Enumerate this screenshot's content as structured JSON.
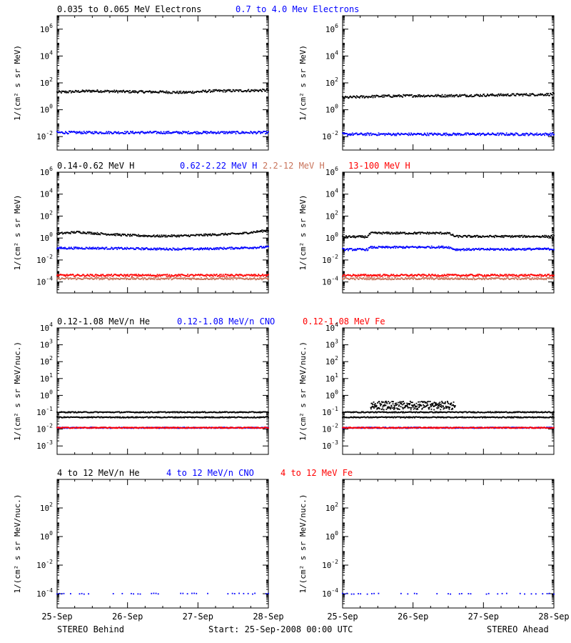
{
  "colors": {
    "black": "#000000",
    "blue": "#0000ff",
    "brown": "#c8735a",
    "red": "#ff0000"
  },
  "footer": {
    "left": "STEREO Behind",
    "center": "Start: 25-Sep-2008 00:00 UTC",
    "right": "STEREO Ahead"
  },
  "x_ticks": [
    "25-Sep",
    "26-Sep",
    "27-Sep",
    "28-Sep"
  ],
  "chart_data": [
    {
      "type": "scatter",
      "row": 1,
      "spacecraft": "STEREO Behind",
      "title_labels": [
        {
          "text": "0.035 to 0.065 MeV Electrons",
          "color": "#000000"
        },
        {
          "text": "0.7 to 4.0 Mev Electrons",
          "color": "#0000ff"
        }
      ],
      "ylabel": "1/(cm² s sr MeV)",
      "yscale": "log",
      "ylim_exp": [
        -3,
        7
      ],
      "ytick_exps": [
        -2,
        0,
        2,
        4,
        6
      ],
      "xlim_days": [
        0,
        3
      ],
      "series": [
        {
          "name": "0.035 to 0.065 MeV Electrons",
          "color": "#000000",
          "x": [
            0,
            0.5,
            1,
            1.5,
            1.8,
            2.2,
            2.6,
            3
          ],
          "y": [
            20,
            25,
            22,
            21,
            19,
            25,
            26,
            28
          ]
        },
        {
          "name": "0.7 to 4.0 Mev Electrons",
          "color": "#0000ff",
          "x": [
            0,
            0.5,
            1,
            1.5,
            2,
            2.5,
            3
          ],
          "y": [
            0.02,
            0.02,
            0.02,
            0.02,
            0.02,
            0.02,
            0.02
          ]
        }
      ]
    },
    {
      "type": "scatter",
      "row": 1,
      "spacecraft": "STEREO Ahead",
      "ylabel": "1/(cm² s sr MeV)",
      "yscale": "log",
      "ylim_exp": [
        -3,
        7
      ],
      "ytick_exps": [
        -2,
        0,
        2,
        4,
        6
      ],
      "xlim_days": [
        0,
        3
      ],
      "series": [
        {
          "name": "0.035 to 0.065 MeV Electrons",
          "color": "#000000",
          "x": [
            0,
            0.5,
            1,
            1.5,
            2,
            2.5,
            3
          ],
          "y": [
            8,
            10,
            11,
            11,
            12,
            13,
            14
          ]
        },
        {
          "name": "0.7 to 4.0 Mev Electrons",
          "color": "#0000ff",
          "x": [
            0,
            0.5,
            1,
            1.5,
            2,
            2.5,
            3
          ],
          "y": [
            0.015,
            0.015,
            0.015,
            0.015,
            0.015,
            0.015,
            0.015
          ]
        }
      ]
    },
    {
      "type": "scatter",
      "row": 2,
      "spacecraft": "STEREO Behind",
      "title_labels": [
        {
          "text": "0.14-0.62 MeV H",
          "color": "#000000"
        },
        {
          "text": "0.62-2.22 MeV H",
          "color": "#0000ff"
        },
        {
          "text": "2.2-12 MeV H",
          "color": "#c8735a"
        },
        {
          "text": "13-100 MeV H",
          "color": "#ff0000"
        }
      ],
      "ylabel": "1/(cm² s sr MeV)",
      "yscale": "log",
      "ylim_exp": [
        -5,
        6
      ],
      "ytick_exps": [
        -4,
        -2,
        0,
        2,
        4,
        6
      ],
      "xlim_days": [
        0,
        3
      ],
      "series": [
        {
          "name": "0.14-0.62 MeV H",
          "color": "#000000",
          "x": [
            0,
            0.3,
            0.6,
            1,
            1.4,
            1.8,
            2.2,
            2.6,
            3
          ],
          "y": [
            2.5,
            3.5,
            2.5,
            1.8,
            1.5,
            1.6,
            2.0,
            2.5,
            5
          ]
        },
        {
          "name": "0.62-2.22 MeV H",
          "color": "#0000ff",
          "x": [
            0,
            0.5,
            1,
            1.5,
            2,
            2.5,
            3
          ],
          "y": [
            0.12,
            0.12,
            0.11,
            0.1,
            0.1,
            0.12,
            0.15
          ]
        },
        {
          "name": "2.2-12 MeV H",
          "color": "#c8735a",
          "x": [
            0,
            1,
            2,
            3
          ],
          "y": [
            0.0002,
            0.0002,
            0.0002,
            0.0002
          ]
        },
        {
          "name": "13-100 MeV H",
          "color": "#ff0000",
          "x": [
            0,
            1,
            2,
            3
          ],
          "y": [
            0.0004,
            0.0004,
            0.0004,
            0.0004
          ]
        }
      ]
    },
    {
      "type": "scatter",
      "row": 2,
      "spacecraft": "STEREO Ahead",
      "ylabel": "1/(cm² s sr MeV)",
      "yscale": "log",
      "ylim_exp": [
        -5,
        6
      ],
      "ytick_exps": [
        -4,
        -2,
        0,
        2,
        4,
        6
      ],
      "xlim_days": [
        0,
        3
      ],
      "series": [
        {
          "name": "0.14-0.62 MeV H",
          "color": "#000000",
          "x": [
            0,
            0.35,
            0.4,
            1.5,
            1.6,
            3
          ],
          "y": [
            1.3,
            1.3,
            2.8,
            2.8,
            1.4,
            1.4
          ]
        },
        {
          "name": "0.62-2.22 MeV H",
          "color": "#0000ff",
          "x": [
            0,
            0.35,
            0.4,
            1.5,
            1.6,
            3
          ],
          "y": [
            0.09,
            0.09,
            0.14,
            0.15,
            0.09,
            0.1
          ]
        },
        {
          "name": "2.2-12 MeV H",
          "color": "#c8735a",
          "x": [
            0,
            1,
            2,
            3
          ],
          "y": [
            0.0002,
            0.0002,
            0.0002,
            0.0002
          ]
        },
        {
          "name": "13-100 MeV H",
          "color": "#ff0000",
          "x": [
            0,
            1,
            2,
            3
          ],
          "y": [
            0.0004,
            0.0004,
            0.0004,
            0.0004
          ]
        }
      ]
    },
    {
      "type": "scatter",
      "row": 3,
      "spacecraft": "STEREO Behind",
      "title_labels": [
        {
          "text": "0.12-1.08 MeV/n He",
          "color": "#000000"
        },
        {
          "text": "0.12-1.08 MeV/n CNO",
          "color": "#0000ff"
        },
        {
          "text": "0.12-1.08 MeV Fe",
          "color": "#ff0000"
        }
      ],
      "ylabel": "1/(cm² s sr MeV/nuc.)",
      "yscale": "log",
      "ylim_exp": [
        -3.5,
        4
      ],
      "ytick_exps": [
        -3,
        -2,
        -1,
        0,
        1,
        2,
        3,
        4
      ],
      "xlim_days": [
        0,
        3
      ],
      "series": [
        {
          "name": "0.12-1.08 MeV/n He",
          "color": "#000000",
          "x": [
            0,
            3
          ],
          "y": [
            0.05,
            0.05
          ]
        },
        {
          "name": "0.12-1.08 MeV/n He (upper)",
          "color": "#000000",
          "x": [
            0,
            3
          ],
          "y": [
            0.1,
            0.1
          ]
        },
        {
          "name": "0.12-1.08 MeV/n CNO",
          "color": "#0000ff",
          "x": [
            0,
            3
          ],
          "y": [
            0.012,
            0.012
          ]
        },
        {
          "name": "0.12-1.08 MeV Fe",
          "color": "#ff0000",
          "x": [
            0,
            3
          ],
          "y": [
            0.012,
            0.012
          ]
        }
      ]
    },
    {
      "type": "scatter",
      "row": 3,
      "spacecraft": "STEREO Ahead",
      "ylabel": "1/(cm² s sr MeV/nuc.)",
      "yscale": "log",
      "ylim_exp": [
        -3.5,
        4
      ],
      "ytick_exps": [
        -3,
        -2,
        -1,
        0,
        1,
        2,
        3,
        4
      ],
      "xlim_days": [
        0,
        3
      ],
      "series": [
        {
          "name": "0.12-1.08 MeV/n He",
          "color": "#000000",
          "x": [
            0,
            3
          ],
          "y": [
            0.05,
            0.05
          ]
        },
        {
          "name": "0.12-1.08 MeV/n He (upper)",
          "color": "#000000",
          "x": [
            0,
            3
          ],
          "y": [
            0.1,
            0.1
          ]
        },
        {
          "name": "0.12-1.08 MeV/n He (enhanced)",
          "color": "#000000",
          "x": [
            0.4,
            1.6
          ],
          "y": [
            0.25,
            0.25
          ]
        },
        {
          "name": "0.12-1.08 MeV/n CNO",
          "color": "#0000ff",
          "x": [
            0,
            3
          ],
          "y": [
            0.012,
            0.012
          ]
        },
        {
          "name": "0.12-1.08 MeV Fe",
          "color": "#ff0000",
          "x": [
            0,
            3
          ],
          "y": [
            0.012,
            0.012
          ]
        }
      ]
    },
    {
      "type": "scatter",
      "row": 4,
      "spacecraft": "STEREO Behind",
      "title_labels": [
        {
          "text": "4 to 12 MeV/n He",
          "color": "#000000"
        },
        {
          "text": "4 to 12 MeV/n CNO",
          "color": "#0000ff"
        },
        {
          "text": "4 to 12 MeV Fe",
          "color": "#ff0000"
        }
      ],
      "ylabel": "1/(cm² s sr MeV/nuc.)",
      "yscale": "log",
      "ylim_exp": [
        -5,
        4
      ],
      "ytick_exps": [
        -4,
        -2,
        0,
        2
      ],
      "xlim_days": [
        0,
        3
      ],
      "series": [
        {
          "name": "4 to 12 MeV/n He",
          "color": "#0000ff",
          "x": [
            0,
            3
          ],
          "y": [
            0.0001,
            0.0001
          ]
        }
      ]
    },
    {
      "type": "scatter",
      "row": 4,
      "spacecraft": "STEREO Ahead",
      "ylabel": "1/(cm² s sr MeV/nuc.)",
      "yscale": "log",
      "ylim_exp": [
        -5,
        4
      ],
      "ytick_exps": [
        -4,
        -2,
        0,
        2
      ],
      "xlim_days": [
        0,
        3
      ],
      "series": [
        {
          "name": "4 to 12 MeV/n He",
          "color": "#0000ff",
          "x": [
            0,
            3
          ],
          "y": [
            0.0001,
            0.0001
          ]
        }
      ]
    }
  ]
}
